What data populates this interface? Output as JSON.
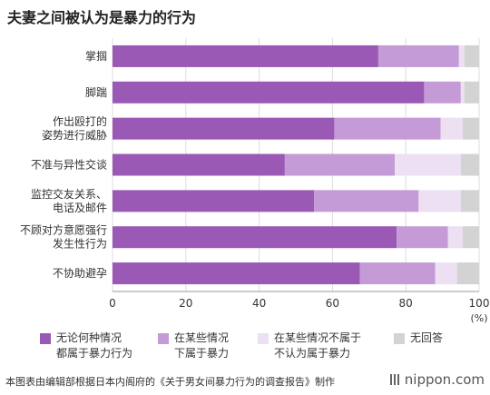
{
  "chart_data": {
    "type": "bar",
    "orientation": "horizontal",
    "stacked": true,
    "title": "夫妻之间被认为是暴力的行为",
    "categories": [
      "掌掴",
      "脚踹",
      "作出殴打的\n姿势进行威胁",
      "不准与异性交谈",
      "监控交友关系、\n电话及邮件",
      "不顾对方意愿强行\n发生性行为",
      "不协助避孕"
    ],
    "series": [
      {
        "name": "无论何种情况\n都属于暴力行为",
        "color": "#9b59b6",
        "values": [
          72.5,
          85.0,
          60.5,
          47.0,
          55.0,
          77.5,
          67.5
        ]
      },
      {
        "name": "在某些情况\n下属于暴力",
        "color": "#c49bd6",
        "values": [
          22.0,
          10.0,
          29.0,
          30.0,
          28.5,
          14.0,
          20.5
        ]
      },
      {
        "name": "在某些情况不属于\n不认为属于暴力",
        "color": "#ece0f2",
        "values": [
          1.5,
          1.0,
          6.0,
          18.0,
          11.5,
          4.0,
          6.0
        ]
      },
      {
        "name": "无回答",
        "color": "#d3d3d3",
        "values": [
          4.0,
          4.0,
          4.5,
          5.0,
          5.0,
          4.5,
          6.0
        ]
      }
    ],
    "xlim": [
      0,
      100
    ],
    "xticks": [
      0,
      20,
      40,
      60,
      80,
      100
    ],
    "xunit": "(%)",
    "grid": true,
    "legend_position": "bottom"
  },
  "footer": {
    "source": "本图表由编辑部根据日本内阁府的《关于男女间暴力行为的调查报告》制作",
    "brand": "nippon.com"
  }
}
